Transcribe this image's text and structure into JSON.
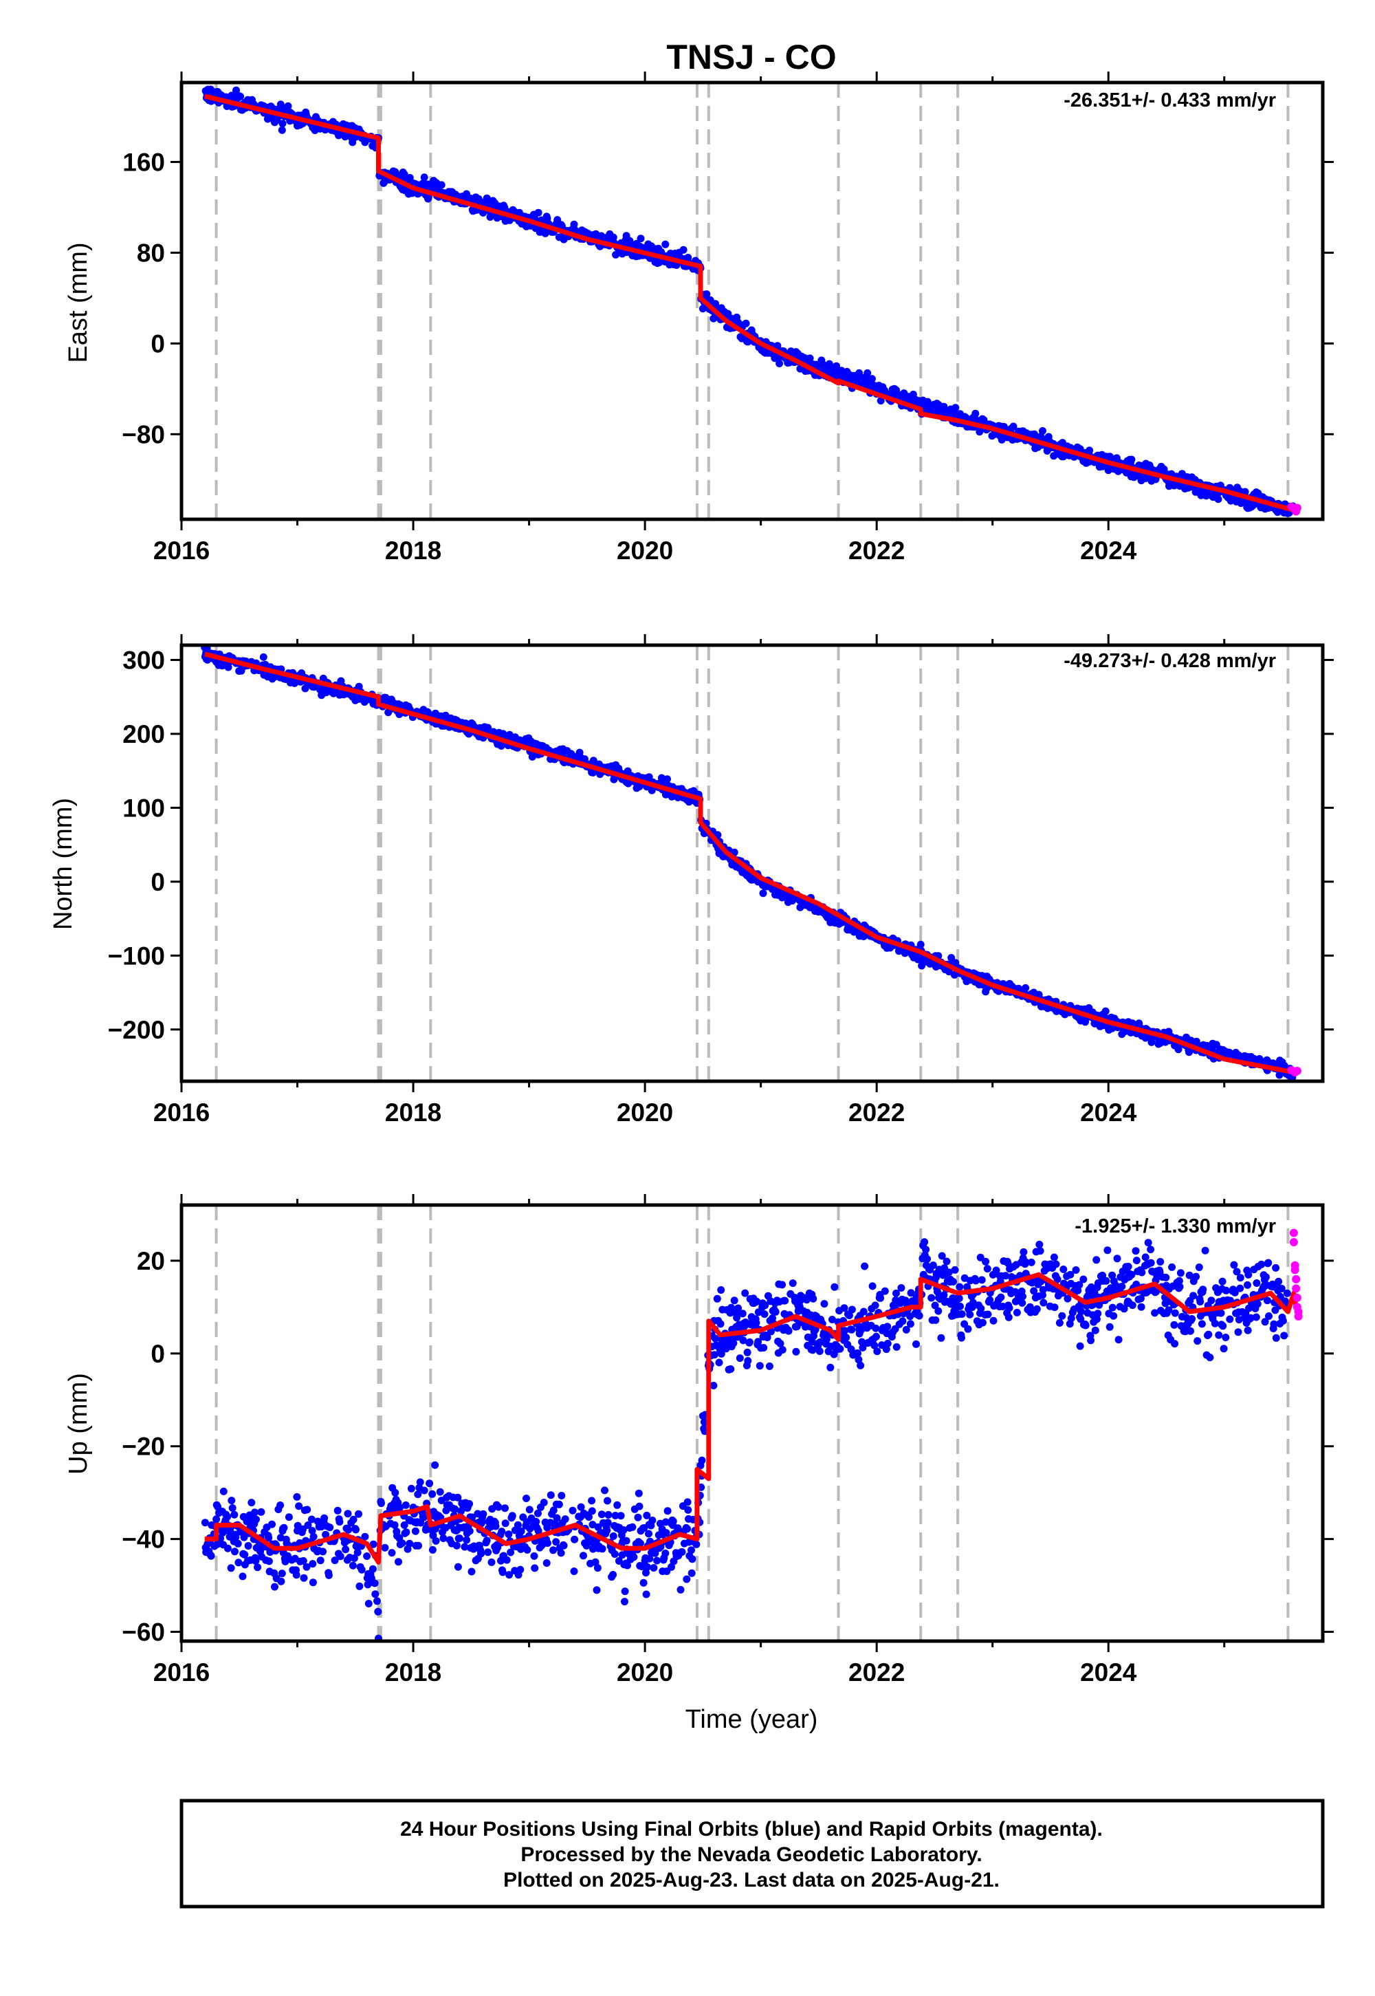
{
  "title": "TNSJ - CO",
  "x_axis_title": "Time (year)",
  "footer": {
    "line1": "24 Hour Positions Using Final Orbits (blue) and Rapid Orbits (magenta).",
    "line2": "Processed by the Nevada Geodetic Laboratory.",
    "line3": "Plotted on 2025-Aug-23. Last data on 2025-Aug-21."
  },
  "colors": {
    "final_orbits": "#0000ff",
    "rapid_orbits": "#ff00ff",
    "model_fit": "#ff0000",
    "event_lines": "#bbbbbb",
    "frame": "#000000"
  },
  "chart_data": [
    {
      "type": "scatter",
      "panel": "east",
      "ylabel": "East (mm)",
      "rate_text": "-26.351+/- 0.433 mm/yr",
      "xlim": [
        2016.0,
        2025.85
      ],
      "ylim": [
        -155,
        230
      ],
      "xticks": [
        2016,
        2018,
        2020,
        2022,
        2024
      ],
      "xtick_labels": [
        "2016",
        "2018",
        "2020",
        "2022",
        "2024"
      ],
      "yticks": [
        -80,
        0,
        80,
        160
      ],
      "ytick_labels": [
        "−80",
        "0",
        "80",
        "160"
      ],
      "grid": false,
      "event_lines": [
        2016.3,
        2017.7,
        2017.72,
        2018.15,
        2020.45,
        2020.55,
        2021.67,
        2022.38,
        2022.7,
        2025.55
      ],
      "model_fit": [
        [
          2016.2,
          218
        ],
        [
          2017.7,
          181
        ],
        [
          2017.7,
          152
        ],
        [
          2018.0,
          137
        ],
        [
          2019.0,
          108
        ],
        [
          2019.5,
          92
        ],
        [
          2020.48,
          68
        ],
        [
          2020.48,
          40
        ],
        [
          2020.7,
          20
        ],
        [
          2021.0,
          0
        ],
        [
          2021.3,
          -15
        ],
        [
          2021.67,
          -35
        ],
        [
          2021.67,
          -33
        ],
        [
          2022.38,
          -58
        ],
        [
          2022.38,
          -62
        ],
        [
          2022.7,
          -68
        ],
        [
          2023.0,
          -75
        ],
        [
          2023.5,
          -90
        ],
        [
          2024.0,
          -105
        ],
        [
          2024.5,
          -118
        ],
        [
          2025.0,
          -130
        ],
        [
          2025.6,
          -147
        ]
      ],
      "final_orbits": {
        "trend_breakpoints": [
          [
            2016.2,
            220
          ],
          [
            2017.7,
            180
          ],
          [
            2017.7,
            150
          ],
          [
            2019.0,
            108
          ],
          [
            2020.48,
            68
          ],
          [
            2020.48,
            40
          ],
          [
            2021.0,
            -2
          ],
          [
            2022.0,
            -40
          ],
          [
            2023.0,
            -75
          ],
          [
            2024.0,
            -105
          ],
          [
            2025.6,
            -147
          ]
        ],
        "scatter_mm": 3.5
      },
      "rapid_orbits": [
        [
          2025.58,
          -144
        ],
        [
          2025.61,
          -146
        ],
        [
          2025.62,
          -148
        ],
        [
          2025.63,
          -145
        ]
      ]
    },
    {
      "type": "scatter",
      "panel": "north",
      "ylabel": "North (mm)",
      "rate_text": "-49.273+/- 0.428 mm/yr",
      "xlim": [
        2016.0,
        2025.85
      ],
      "ylim": [
        -270,
        320
      ],
      "xticks": [
        2016,
        2018,
        2020,
        2022,
        2024
      ],
      "xtick_labels": [
        "2016",
        "2018",
        "2020",
        "2022",
        "2024"
      ],
      "yticks": [
        -200,
        -100,
        0,
        100,
        200,
        300
      ],
      "ytick_labels": [
        "−200",
        "−100",
        "0",
        "100",
        "200",
        "300"
      ],
      "grid": false,
      "event_lines": [
        2016.3,
        2017.7,
        2017.72,
        2018.15,
        2020.45,
        2020.55,
        2021.67,
        2022.38,
        2022.7,
        2025.55
      ],
      "model_fit": [
        [
          2016.2,
          308
        ],
        [
          2016.7,
          288
        ],
        [
          2017.7,
          250
        ],
        [
          2017.7,
          240
        ],
        [
          2018.5,
          205
        ],
        [
          2019.0,
          180
        ],
        [
          2020.48,
          112
        ],
        [
          2020.48,
          80
        ],
        [
          2020.7,
          40
        ],
        [
          2021.0,
          5
        ],
        [
          2021.5,
          -30
        ],
        [
          2022.0,
          -75
        ],
        [
          2022.38,
          -95
        ],
        [
          2022.7,
          -120
        ],
        [
          2023.0,
          -140
        ],
        [
          2023.5,
          -165
        ],
        [
          2024.0,
          -190
        ],
        [
          2024.5,
          -210
        ],
        [
          2025.0,
          -240
        ],
        [
          2025.6,
          -258
        ]
      ],
      "final_orbits": {
        "trend_breakpoints": [
          [
            2016.2,
            308
          ],
          [
            2017.7,
            245
          ],
          [
            2020.48,
            112
          ],
          [
            2020.48,
            80
          ],
          [
            2020.7,
            38
          ],
          [
            2021.0,
            0
          ],
          [
            2022.0,
            -75
          ],
          [
            2023.0,
            -140
          ],
          [
            2024.0,
            -190
          ],
          [
            2025.6,
            -258
          ]
        ],
        "scatter_mm": 4.5
      },
      "rapid_orbits": [
        [
          2025.58,
          -255
        ],
        [
          2025.61,
          -258
        ],
        [
          2025.63,
          -256
        ]
      ]
    },
    {
      "type": "scatter",
      "panel": "up",
      "ylabel": "Up (mm)",
      "rate_text": "-1.925+/- 1.330 mm/yr",
      "xlim": [
        2016.0,
        2025.85
      ],
      "ylim": [
        -62,
        32
      ],
      "xticks": [
        2016,
        2018,
        2020,
        2022,
        2024
      ],
      "xtick_labels": [
        "2016",
        "2018",
        "2020",
        "2022",
        "2024"
      ],
      "yticks": [
        -60,
        -40,
        -20,
        0,
        20
      ],
      "ytick_labels": [
        "−60",
        "−40",
        "−20",
        "0",
        "20"
      ],
      "grid": false,
      "event_lines": [
        2016.3,
        2017.7,
        2017.72,
        2018.15,
        2020.45,
        2020.55,
        2021.67,
        2022.38,
        2022.7,
        2025.55
      ],
      "model_fit": [
        [
          2016.2,
          -40
        ],
        [
          2016.3,
          -40
        ],
        [
          2016.3,
          -37
        ],
        [
          2016.5,
          -37
        ],
        [
          2016.8,
          -42
        ],
        [
          2017.0,
          -42
        ],
        [
          2017.4,
          -39
        ],
        [
          2017.6,
          -41
        ],
        [
          2017.7,
          -45
        ],
        [
          2017.72,
          -35
        ],
        [
          2018.0,
          -34
        ],
        [
          2018.12,
          -33
        ],
        [
          2018.15,
          -37
        ],
        [
          2018.4,
          -35
        ],
        [
          2018.8,
          -41
        ],
        [
          2019.0,
          -40
        ],
        [
          2019.4,
          -37
        ],
        [
          2019.8,
          -42
        ],
        [
          2020.0,
          -42
        ],
        [
          2020.3,
          -39
        ],
        [
          2020.45,
          -40
        ],
        [
          2020.45,
          -25
        ],
        [
          2020.55,
          -27
        ],
        [
          2020.55,
          7
        ],
        [
          2020.65,
          4
        ],
        [
          2021.0,
          5
        ],
        [
          2021.3,
          8
        ],
        [
          2021.6,
          5
        ],
        [
          2021.67,
          3
        ],
        [
          2021.67,
          6
        ],
        [
          2022.0,
          8
        ],
        [
          2022.3,
          10
        ],
        [
          2022.38,
          10
        ],
        [
          2022.38,
          16
        ],
        [
          2022.7,
          13
        ],
        [
          2022.7,
          13
        ],
        [
          2023.0,
          14
        ],
        [
          2023.4,
          17
        ],
        [
          2023.8,
          11
        ],
        [
          2024.0,
          12
        ],
        [
          2024.4,
          15
        ],
        [
          2024.7,
          9
        ],
        [
          2025.0,
          10
        ],
        [
          2025.4,
          13
        ],
        [
          2025.55,
          9
        ],
        [
          2025.6,
          13
        ],
        [
          2025.62,
          10
        ]
      ],
      "final_orbits": {
        "trend_breakpoints": [
          [
            2016.2,
            -40
          ],
          [
            2016.3,
            -37
          ],
          [
            2016.8,
            -42
          ],
          [
            2017.4,
            -39
          ],
          [
            2017.7,
            -50
          ],
          [
            2017.72,
            -35
          ],
          [
            2018.15,
            -35
          ],
          [
            2018.8,
            -41
          ],
          [
            2019.4,
            -37
          ],
          [
            2019.8,
            -42
          ],
          [
            2020.45,
            -40
          ],
          [
            2020.55,
            0
          ],
          [
            2020.65,
            4
          ],
          [
            2021.3,
            8
          ],
          [
            2021.67,
            4
          ],
          [
            2022.38,
            10
          ],
          [
            2022.4,
            18
          ],
          [
            2022.7,
            10
          ],
          [
            2023.4,
            17
          ],
          [
            2023.8,
            11
          ],
          [
            2024.4,
            15
          ],
          [
            2024.7,
            9
          ],
          [
            2025.4,
            13
          ],
          [
            2025.55,
            9
          ]
        ],
        "scatter_mm": 3.8
      },
      "rapid_orbits": [
        [
          2025.6,
          26
        ],
        [
          2025.6,
          24
        ],
        [
          2025.61,
          19
        ],
        [
          2025.61,
          18
        ],
        [
          2025.62,
          16
        ],
        [
          2025.62,
          14
        ],
        [
          2025.63,
          12
        ],
        [
          2025.63,
          10
        ],
        [
          2025.64,
          9
        ],
        [
          2025.64,
          8
        ]
      ]
    }
  ]
}
